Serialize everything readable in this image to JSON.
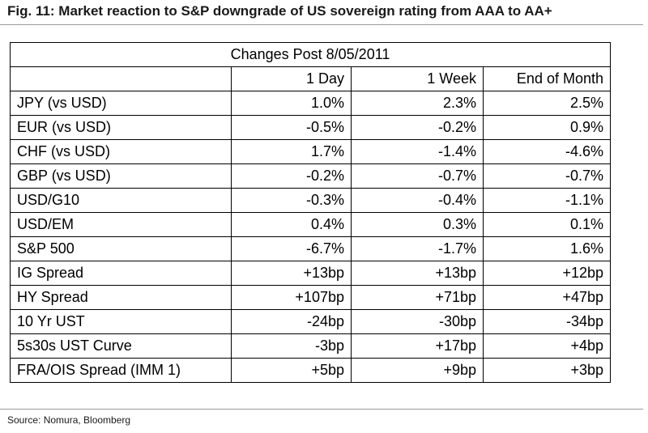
{
  "figure": {
    "title": "Fig. 11: Market reaction to S&P downgrade of US sovereign rating from AAA to AA+",
    "source": "Source: Nomura, Bloomberg"
  },
  "table": {
    "group_header": "Changes Post 8/05/2011",
    "columns": [
      "1 Day",
      "1 Week",
      "End of Month"
    ],
    "rows": [
      {
        "label": "JPY (vs USD)",
        "values": [
          "1.0%",
          "2.3%",
          "2.5%"
        ]
      },
      {
        "label": "EUR (vs USD)",
        "values": [
          "-0.5%",
          "-0.2%",
          "0.9%"
        ]
      },
      {
        "label": "CHF (vs USD)",
        "values": [
          "1.7%",
          "-1.4%",
          "-4.6%"
        ]
      },
      {
        "label": "GBP (vs USD)",
        "values": [
          "-0.2%",
          "-0.7%",
          "-0.7%"
        ]
      },
      {
        "label": "USD/G10",
        "values": [
          "-0.3%",
          "-0.4%",
          "-1.1%"
        ]
      },
      {
        "label": "USD/EM",
        "values": [
          "0.4%",
          "0.3%",
          "0.1%"
        ]
      },
      {
        "label": "S&P 500",
        "values": [
          "-6.7%",
          "-1.7%",
          "1.6%"
        ]
      },
      {
        "label": "IG Spread",
        "values": [
          "+13bp",
          "+13bp",
          "+12bp"
        ]
      },
      {
        "label": "HY Spread",
        "values": [
          "+107bp",
          "+71bp",
          "+47bp"
        ]
      },
      {
        "label": "10 Yr UST",
        "values": [
          "-24bp",
          "-30bp",
          "-34bp"
        ]
      },
      {
        "label": "5s30s UST Curve",
        "values": [
          "-3bp",
          "+17bp",
          "+4bp"
        ]
      },
      {
        "label": "FRA/OIS Spread (IMM 1)",
        "values": [
          "+5bp",
          "+9bp",
          "+3bp"
        ]
      }
    ]
  }
}
